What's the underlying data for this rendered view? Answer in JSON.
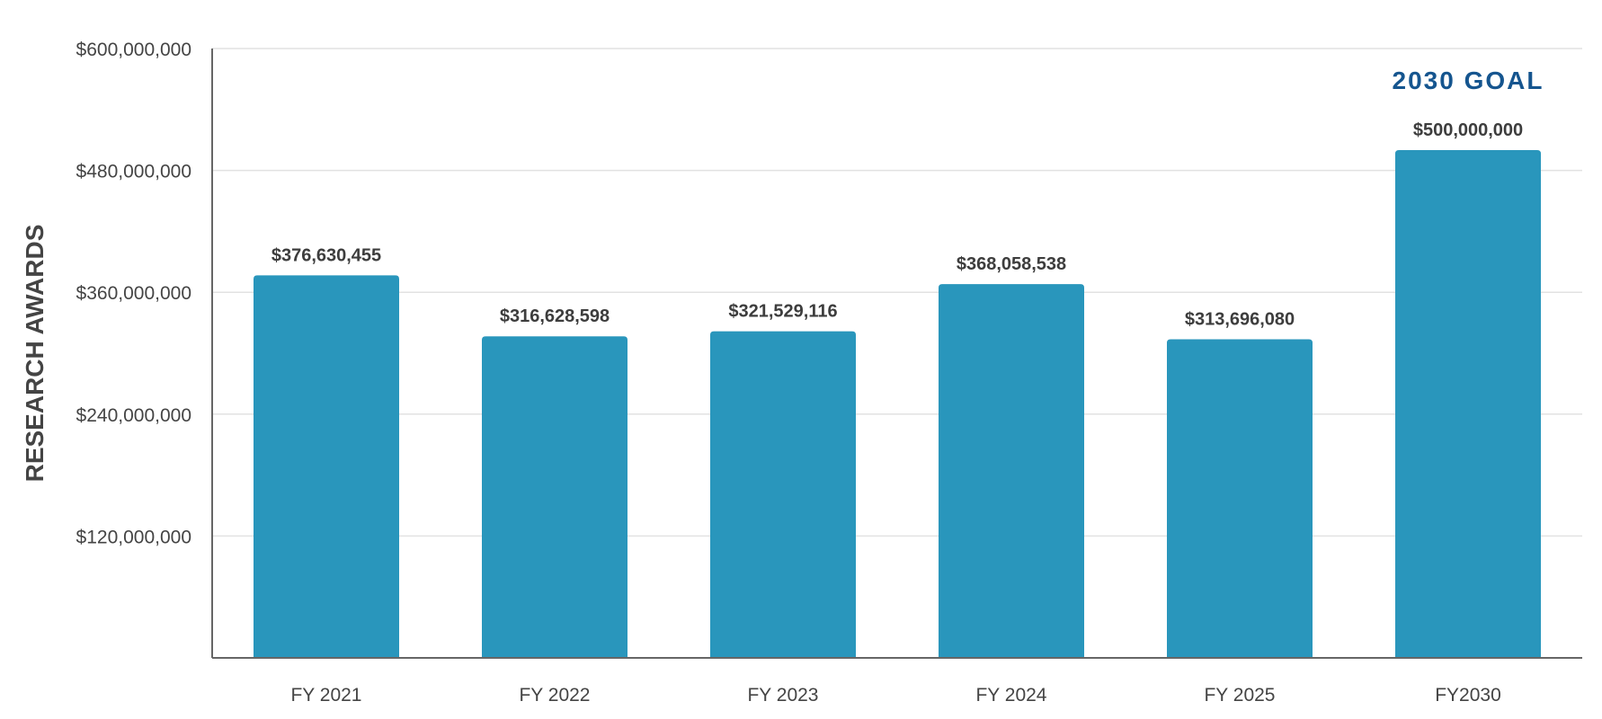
{
  "chart_data": {
    "type": "bar",
    "title": "",
    "xlabel": "",
    "ylabel": "RESEARCH AWARDS",
    "categories": [
      "FY 2021",
      "FY 2022",
      "FY 2023",
      "FY 2024",
      "FY 2025",
      "FY2030"
    ],
    "values": [
      376630455,
      316628598,
      321529116,
      368058538,
      313696080,
      500000000
    ],
    "value_labels": [
      "$376,630,455",
      "$316,628,598",
      "$321,529,116",
      "$368,058,538",
      "$313,696,080",
      "$500,000,000"
    ],
    "ylim": [
      0,
      600000000
    ],
    "y_ticks": [
      120000000,
      240000000,
      360000000,
      480000000,
      600000000
    ],
    "y_tick_labels": [
      "$120,000,000",
      "$240,000,000",
      "$360,000,000",
      "$480,000,000",
      "$600,000,000"
    ],
    "annotation": "2030 GOAL",
    "grid": true,
    "legend": "none",
    "colors": {
      "bar": "#2996bc",
      "annotation": "#15558f",
      "axis": "#666666",
      "grid": "#e2e2e2"
    }
  }
}
